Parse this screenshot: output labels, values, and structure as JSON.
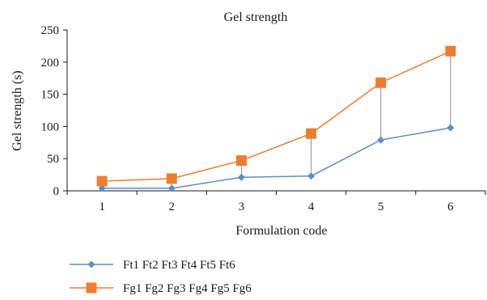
{
  "chart_data": {
    "type": "line",
    "title": "Gel strength",
    "xlabel": "Formulation code",
    "ylabel": "Gel strength (s)",
    "categories": [
      "1",
      "2",
      "3",
      "4",
      "5",
      "6"
    ],
    "ylim": [
      0,
      250
    ],
    "yticks": [
      "0",
      "50",
      "100",
      "150",
      "200",
      "250"
    ],
    "grid": false,
    "legend_position": "bottom",
    "high_low_lines": true,
    "series": [
      {
        "name": "Ft1 Ft2 Ft3 Ft4 Ft5 Ft6",
        "values": [
          4,
          4,
          21,
          23,
          79,
          98
        ],
        "color": "#5b8fc9",
        "marker": "diamond"
      },
      {
        "name": "Fg1 Fg2 Fg3 Fg4 Fg5 Fg6",
        "values": [
          15,
          19,
          47,
          89,
          168,
          217
        ],
        "color": "#ed7d31",
        "marker": "square"
      }
    ],
    "connector_color": "#8c8c8c",
    "axis_color": "#1a1a1a"
  }
}
